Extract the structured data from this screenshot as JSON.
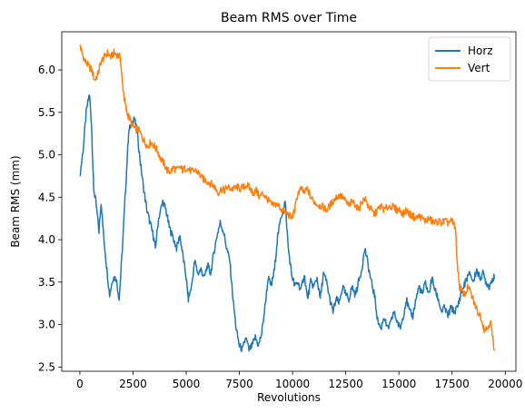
{
  "chart_data": {
    "type": "line",
    "title": "Beam RMS over Time",
    "xlabel": "Revolutions",
    "ylabel": "Beam RMS (mm)",
    "xlim": [
      -850,
      20500
    ],
    "ylim": [
      2.45,
      6.45
    ],
    "xticks": [
      0,
      2500,
      5000,
      7500,
      10000,
      12500,
      15000,
      17500,
      20000
    ],
    "yticks": [
      2.5,
      3.0,
      3.5,
      4.0,
      4.5,
      5.0,
      5.5,
      6.0
    ],
    "grid": false,
    "legend_position": "top-right",
    "series": [
      {
        "name": "Horz",
        "color": "#1f77b4",
        "points": [
          [
            0,
            4.75
          ],
          [
            150,
            5.05
          ],
          [
            300,
            5.5
          ],
          [
            450,
            5.72
          ],
          [
            550,
            5.35
          ],
          [
            650,
            4.6
          ],
          [
            750,
            4.45
          ],
          [
            900,
            4.1
          ],
          [
            1000,
            4.45
          ],
          [
            1100,
            4.1
          ],
          [
            1250,
            3.7
          ],
          [
            1400,
            3.35
          ],
          [
            1550,
            3.55
          ],
          [
            1700,
            3.55
          ],
          [
            1850,
            3.3
          ],
          [
            2000,
            3.9
          ],
          [
            2150,
            4.6
          ],
          [
            2300,
            5.3
          ],
          [
            2450,
            5.35
          ],
          [
            2550,
            5.45
          ],
          [
            2700,
            5.25
          ],
          [
            2850,
            4.9
          ],
          [
            3000,
            4.6
          ],
          [
            3150,
            4.35
          ],
          [
            3300,
            4.2
          ],
          [
            3450,
            4.05
          ],
          [
            3550,
            3.9
          ],
          [
            3700,
            4.25
          ],
          [
            3900,
            4.45
          ],
          [
            4050,
            4.35
          ],
          [
            4200,
            4.15
          ],
          [
            4350,
            4.05
          ],
          [
            4550,
            3.9
          ],
          [
            4700,
            4.05
          ],
          [
            4850,
            3.8
          ],
          [
            5000,
            3.55
          ],
          [
            5100,
            3.3
          ],
          [
            5250,
            3.45
          ],
          [
            5400,
            3.75
          ],
          [
            5550,
            3.6
          ],
          [
            5700,
            3.65
          ],
          [
            5850,
            3.55
          ],
          [
            6000,
            3.7
          ],
          [
            6150,
            3.6
          ],
          [
            6300,
            3.85
          ],
          [
            6450,
            4.05
          ],
          [
            6600,
            4.2
          ],
          [
            6750,
            4.1
          ],
          [
            6900,
            3.9
          ],
          [
            7050,
            3.75
          ],
          [
            7200,
            3.3
          ],
          [
            7350,
            2.95
          ],
          [
            7500,
            2.75
          ],
          [
            7650,
            2.7
          ],
          [
            7800,
            2.85
          ],
          [
            7950,
            2.7
          ],
          [
            8100,
            2.75
          ],
          [
            8250,
            2.85
          ],
          [
            8400,
            2.75
          ],
          [
            8550,
            2.9
          ],
          [
            8700,
            3.2
          ],
          [
            8850,
            3.55
          ],
          [
            9000,
            3.45
          ],
          [
            9150,
            3.65
          ],
          [
            9300,
            4.05
          ],
          [
            9500,
            4.3
          ],
          [
            9650,
            4.45
          ],
          [
            9800,
            3.9
          ],
          [
            9950,
            3.6
          ],
          [
            10100,
            3.45
          ],
          [
            10250,
            3.5
          ],
          [
            10400,
            3.4
          ],
          [
            10550,
            3.6
          ],
          [
            10700,
            3.3
          ],
          [
            10850,
            3.5
          ],
          [
            11000,
            3.45
          ],
          [
            11150,
            3.55
          ],
          [
            11300,
            3.3
          ],
          [
            11450,
            3.6
          ],
          [
            11600,
            3.5
          ],
          [
            11750,
            3.3
          ],
          [
            11900,
            3.15
          ],
          [
            12050,
            3.3
          ],
          [
            12200,
            3.25
          ],
          [
            12350,
            3.45
          ],
          [
            12500,
            3.35
          ],
          [
            12650,
            3.3
          ],
          [
            12800,
            3.45
          ],
          [
            12950,
            3.35
          ],
          [
            13100,
            3.5
          ],
          [
            13250,
            3.65
          ],
          [
            13400,
            3.9
          ],
          [
            13550,
            3.7
          ],
          [
            13700,
            3.5
          ],
          [
            13850,
            3.35
          ],
          [
            14000,
            3.05
          ],
          [
            14150,
            2.95
          ],
          [
            14300,
            3.1
          ],
          [
            14450,
            2.95
          ],
          [
            14600,
            3.0
          ],
          [
            14750,
            3.15
          ],
          [
            14900,
            3.05
          ],
          [
            15050,
            2.95
          ],
          [
            15200,
            3.1
          ],
          [
            15350,
            3.3
          ],
          [
            15500,
            3.15
          ],
          [
            15650,
            3.1
          ],
          [
            15800,
            3.3
          ],
          [
            15950,
            3.45
          ],
          [
            16100,
            3.35
          ],
          [
            16250,
            3.5
          ],
          [
            16400,
            3.35
          ],
          [
            16550,
            3.55
          ],
          [
            16700,
            3.4
          ],
          [
            16850,
            3.3
          ],
          [
            17000,
            3.15
          ],
          [
            17150,
            3.2
          ],
          [
            17300,
            3.1
          ],
          [
            17450,
            3.2
          ],
          [
            17600,
            3.15
          ],
          [
            17750,
            3.2
          ],
          [
            17900,
            3.35
          ],
          [
            18050,
            3.45
          ],
          [
            18200,
            3.55
          ],
          [
            18350,
            3.6
          ],
          [
            18500,
            3.5
          ],
          [
            18650,
            3.65
          ],
          [
            18800,
            3.55
          ],
          [
            18950,
            3.6
          ],
          [
            19100,
            3.5
          ],
          [
            19250,
            3.45
          ],
          [
            19400,
            3.55
          ],
          [
            19500,
            3.55
          ]
        ]
      },
      {
        "name": "Vert",
        "color": "#ff7f0e",
        "points": [
          [
            0,
            6.3
          ],
          [
            100,
            6.2
          ],
          [
            250,
            6.1
          ],
          [
            400,
            6.05
          ],
          [
            550,
            6.0
          ],
          [
            700,
            5.88
          ],
          [
            850,
            5.95
          ],
          [
            1000,
            6.1
          ],
          [
            1150,
            6.15
          ],
          [
            1300,
            6.2
          ],
          [
            1450,
            6.15
          ],
          [
            1600,
            6.2
          ],
          [
            1750,
            6.18
          ],
          [
            1900,
            6.15
          ],
          [
            2000,
            5.85
          ],
          [
            2100,
            5.65
          ],
          [
            2200,
            5.5
          ],
          [
            2300,
            5.45
          ],
          [
            2450,
            5.35
          ],
          [
            2600,
            5.3
          ],
          [
            2750,
            5.3
          ],
          [
            2900,
            5.22
          ],
          [
            3050,
            5.15
          ],
          [
            3200,
            5.1
          ],
          [
            3350,
            5.15
          ],
          [
            3500,
            5.1
          ],
          [
            3650,
            5.05
          ],
          [
            3800,
            4.95
          ],
          [
            3950,
            4.9
          ],
          [
            4100,
            4.82
          ],
          [
            4250,
            4.8
          ],
          [
            4400,
            4.85
          ],
          [
            4550,
            4.82
          ],
          [
            4700,
            4.85
          ],
          [
            4850,
            4.82
          ],
          [
            5000,
            4.85
          ],
          [
            5150,
            4.82
          ],
          [
            5300,
            4.8
          ],
          [
            5450,
            4.82
          ],
          [
            5600,
            4.78
          ],
          [
            5750,
            4.72
          ],
          [
            5900,
            4.7
          ],
          [
            6050,
            4.68
          ],
          [
            6200,
            4.65
          ],
          [
            6350,
            4.62
          ],
          [
            6500,
            4.55
          ],
          [
            6650,
            4.6
          ],
          [
            6800,
            4.58
          ],
          [
            6950,
            4.62
          ],
          [
            7100,
            4.6
          ],
          [
            7250,
            4.6
          ],
          [
            7400,
            4.62
          ],
          [
            7550,
            4.6
          ],
          [
            7700,
            4.62
          ],
          [
            7850,
            4.65
          ],
          [
            8000,
            4.6
          ],
          [
            8150,
            4.55
          ],
          [
            8300,
            4.58
          ],
          [
            8450,
            4.5
          ],
          [
            8600,
            4.55
          ],
          [
            8750,
            4.5
          ],
          [
            8900,
            4.45
          ],
          [
            9050,
            4.4
          ],
          [
            9200,
            4.42
          ],
          [
            9350,
            4.4
          ],
          [
            9500,
            4.35
          ],
          [
            9650,
            4.32
          ],
          [
            9800,
            4.3
          ],
          [
            9950,
            4.25
          ],
          [
            10100,
            4.35
          ],
          [
            10250,
            4.55
          ],
          [
            10400,
            4.6
          ],
          [
            10550,
            4.55
          ],
          [
            10700,
            4.6
          ],
          [
            10850,
            4.5
          ],
          [
            11000,
            4.45
          ],
          [
            11150,
            4.42
          ],
          [
            11300,
            4.4
          ],
          [
            11450,
            4.38
          ],
          [
            11600,
            4.35
          ],
          [
            11750,
            4.4
          ],
          [
            11900,
            4.45
          ],
          [
            12050,
            4.5
          ],
          [
            12200,
            4.52
          ],
          [
            12350,
            4.5
          ],
          [
            12500,
            4.45
          ],
          [
            12650,
            4.4
          ],
          [
            12800,
            4.45
          ],
          [
            12950,
            4.42
          ],
          [
            13100,
            4.35
          ],
          [
            13250,
            4.45
          ],
          [
            13400,
            4.48
          ],
          [
            13550,
            4.4
          ],
          [
            13700,
            4.35
          ],
          [
            13850,
            4.3
          ],
          [
            14000,
            4.35
          ],
          [
            14150,
            4.4
          ],
          [
            14300,
            4.35
          ],
          [
            14450,
            4.38
          ],
          [
            14600,
            4.4
          ],
          [
            14750,
            4.38
          ],
          [
            14900,
            4.35
          ],
          [
            15050,
            4.35
          ],
          [
            15200,
            4.3
          ],
          [
            15350,
            4.35
          ],
          [
            15500,
            4.3
          ],
          [
            15650,
            4.28
          ],
          [
            15800,
            4.25
          ],
          [
            15950,
            4.28
          ],
          [
            16100,
            4.25
          ],
          [
            16250,
            4.22
          ],
          [
            16400,
            4.25
          ],
          [
            16550,
            4.22
          ],
          [
            16700,
            4.2
          ],
          [
            16850,
            4.22
          ],
          [
            17000,
            4.2
          ],
          [
            17150,
            4.22
          ],
          [
            17300,
            4.2
          ],
          [
            17450,
            4.22
          ],
          [
            17550,
            4.2
          ],
          [
            17650,
            4.15
          ],
          [
            17750,
            3.7
          ],
          [
            17850,
            3.45
          ],
          [
            17950,
            3.4
          ],
          [
            18100,
            3.35
          ],
          [
            18250,
            3.45
          ],
          [
            18400,
            3.35
          ],
          [
            18550,
            3.25
          ],
          [
            18700,
            3.15
          ],
          [
            18850,
            3.1
          ],
          [
            19000,
            2.95
          ],
          [
            19150,
            2.95
          ],
          [
            19300,
            3.05
          ],
          [
            19400,
            2.85
          ],
          [
            19500,
            2.7
          ]
        ]
      }
    ]
  }
}
